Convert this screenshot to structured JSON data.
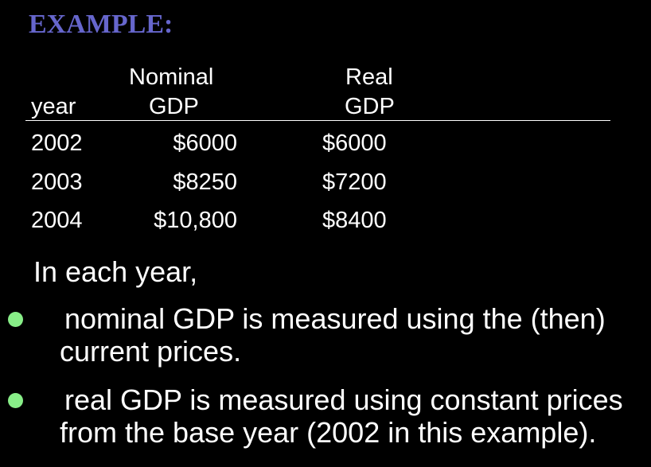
{
  "title": "EXAMPLE:",
  "table": {
    "headers": {
      "nominal_top": "Nominal",
      "real_top": "Real",
      "year": "year",
      "nominal_bottom": "GDP",
      "real_bottom": "GDP"
    },
    "rows": [
      {
        "year": "2002",
        "nominal": "$6000",
        "real": "$6000"
      },
      {
        "year": "2003",
        "nominal": "$8250",
        "real": "$7200"
      },
      {
        "year": "2004",
        "nominal": "$10,800",
        "real": "$8400"
      }
    ]
  },
  "intro": "In each year,",
  "bullets": [
    {
      "line1": "nominal GDP is measured using the (then)",
      "line2": "current prices."
    },
    {
      "line1": "real GDP is measured using constant prices",
      "line2": "from the base year (2002 in this example)."
    }
  ],
  "colors": {
    "background": "#000000",
    "title": "#6666cc",
    "text": "#ffffff",
    "bullet": "#88ee88"
  }
}
